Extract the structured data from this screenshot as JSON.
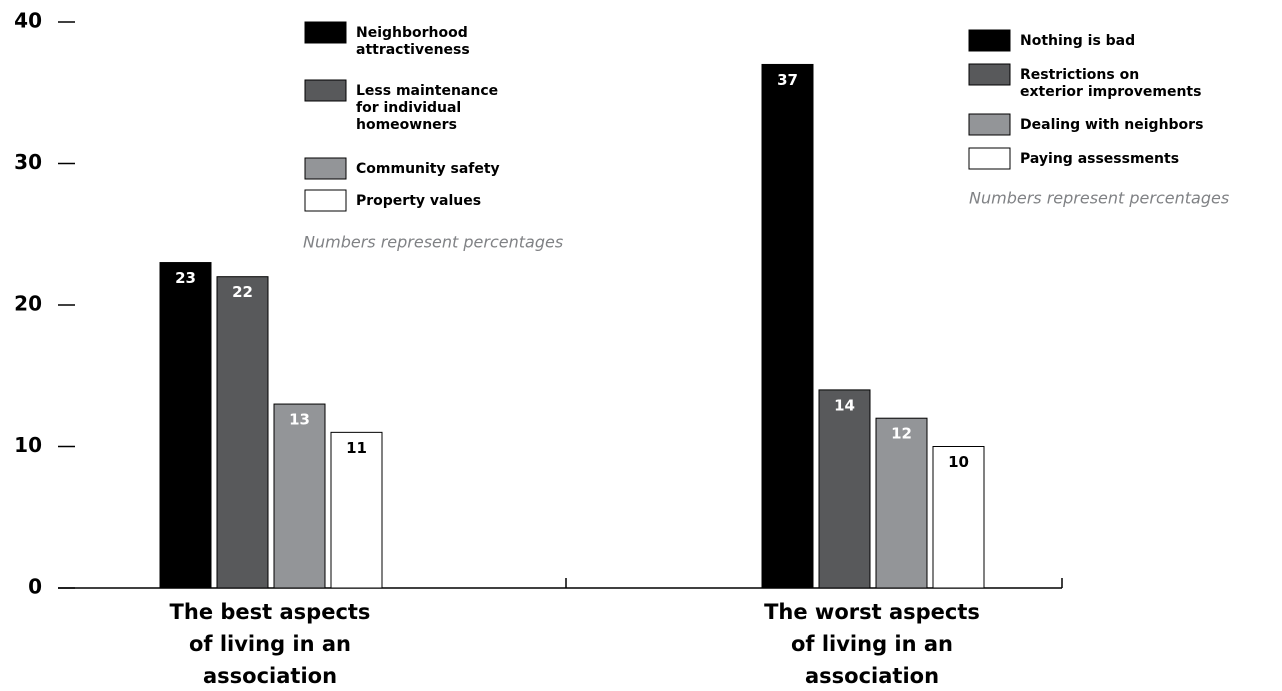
{
  "chart_data": {
    "type": "bar",
    "ylim": [
      0,
      40
    ],
    "yticks": [
      0,
      10,
      20,
      30,
      40
    ],
    "groups": [
      {
        "category": [
          "The best aspects",
          "of living in an",
          "association"
        ],
        "note": "Numbers represent percentages",
        "series": [
          {
            "name": [
              "Neighborhood",
              "attractiveness"
            ],
            "color": "#000000",
            "value": 23
          },
          {
            "name": [
              "Less maintenance",
              "for individual",
              "homeowners"
            ],
            "color": "#58595b",
            "value": 22
          },
          {
            "name": [
              "Community safety"
            ],
            "color": "#939598",
            "value": 13
          },
          {
            "name": [
              "Property values"
            ],
            "color": "#ffffff",
            "value": 11
          }
        ]
      },
      {
        "category": [
          "The worst aspects",
          "of living in an",
          "association"
        ],
        "note": "Numbers represent percentages",
        "series": [
          {
            "name": [
              "Nothing is bad"
            ],
            "color": "#000000",
            "value": 37
          },
          {
            "name": [
              "Restrictions on",
              "exterior improvements"
            ],
            "color": "#58595b",
            "value": 14
          },
          {
            "name": [
              "Dealing with neighbors"
            ],
            "color": "#939598",
            "value": 12
          },
          {
            "name": [
              "Paying assessments"
            ],
            "color": "#ffffff",
            "value": 10
          }
        ]
      }
    ]
  }
}
